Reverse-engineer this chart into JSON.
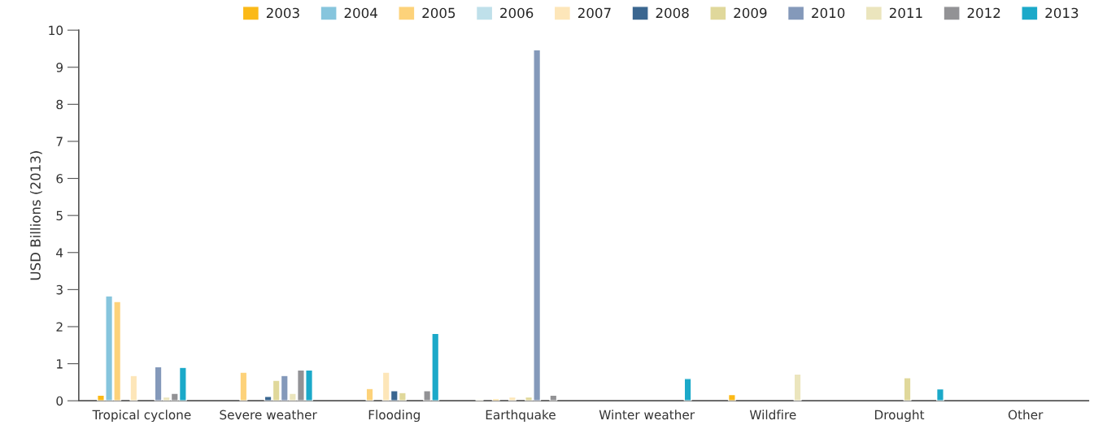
{
  "chart_data": {
    "type": "bar",
    "ylabel": "USD Billions (2013)",
    "categories": [
      "Tropical cyclone",
      "Severe weather",
      "Flooding",
      "Earthquake",
      "Winter weather",
      "Wildfire",
      "Drought",
      "Other"
    ],
    "series": [
      {
        "name": "2003",
        "color": "#fbb917",
        "values": [
          0.15,
          null,
          null,
          0.03,
          null,
          0.17,
          null,
          null
        ]
      },
      {
        "name": "2004",
        "color": "#86c5dd",
        "values": [
          2.83,
          null,
          null,
          null,
          null,
          null,
          null,
          null
        ]
      },
      {
        "name": "2005",
        "color": "#fdd27a",
        "values": [
          2.68,
          0.77,
          0.33,
          0.05,
          null,
          null,
          null,
          null
        ]
      },
      {
        "name": "2006",
        "color": "#bfe0ea",
        "values": [
          null,
          null,
          null,
          null,
          null,
          null,
          null,
          null
        ]
      },
      {
        "name": "2007",
        "color": "#fde6b9",
        "values": [
          0.68,
          null,
          0.77,
          0.1,
          null,
          null,
          null,
          null
        ]
      },
      {
        "name": "2008",
        "color": "#3a6690",
        "values": [
          null,
          0.12,
          0.27,
          null,
          null,
          null,
          null,
          null
        ]
      },
      {
        "name": "2009",
        "color": "#e0d89b",
        "values": [
          null,
          0.55,
          0.22,
          0.1,
          null,
          null,
          0.62,
          null
        ]
      },
      {
        "name": "2010",
        "color": "#8499ba",
        "values": [
          0.92,
          0.68,
          null,
          9.47,
          null,
          null,
          null,
          null
        ]
      },
      {
        "name": "2011",
        "color": "#ebe5bd",
        "values": [
          0.1,
          0.2,
          null,
          null,
          null,
          0.72,
          null,
          null
        ]
      },
      {
        "name": "2012",
        "color": "#929295",
        "values": [
          0.2,
          0.83,
          0.27,
          0.15,
          null,
          null,
          null,
          null
        ]
      },
      {
        "name": "2013",
        "color": "#1ba9c9",
        "values": [
          0.9,
          0.83,
          1.82,
          null,
          0.6,
          null,
          0.32,
          null
        ]
      }
    ],
    "ylim": [
      0,
      10
    ],
    "yticks": [
      0,
      1,
      2,
      3,
      4,
      5,
      6,
      7,
      8,
      9,
      10
    ],
    "grid": false,
    "legend": "top right"
  }
}
